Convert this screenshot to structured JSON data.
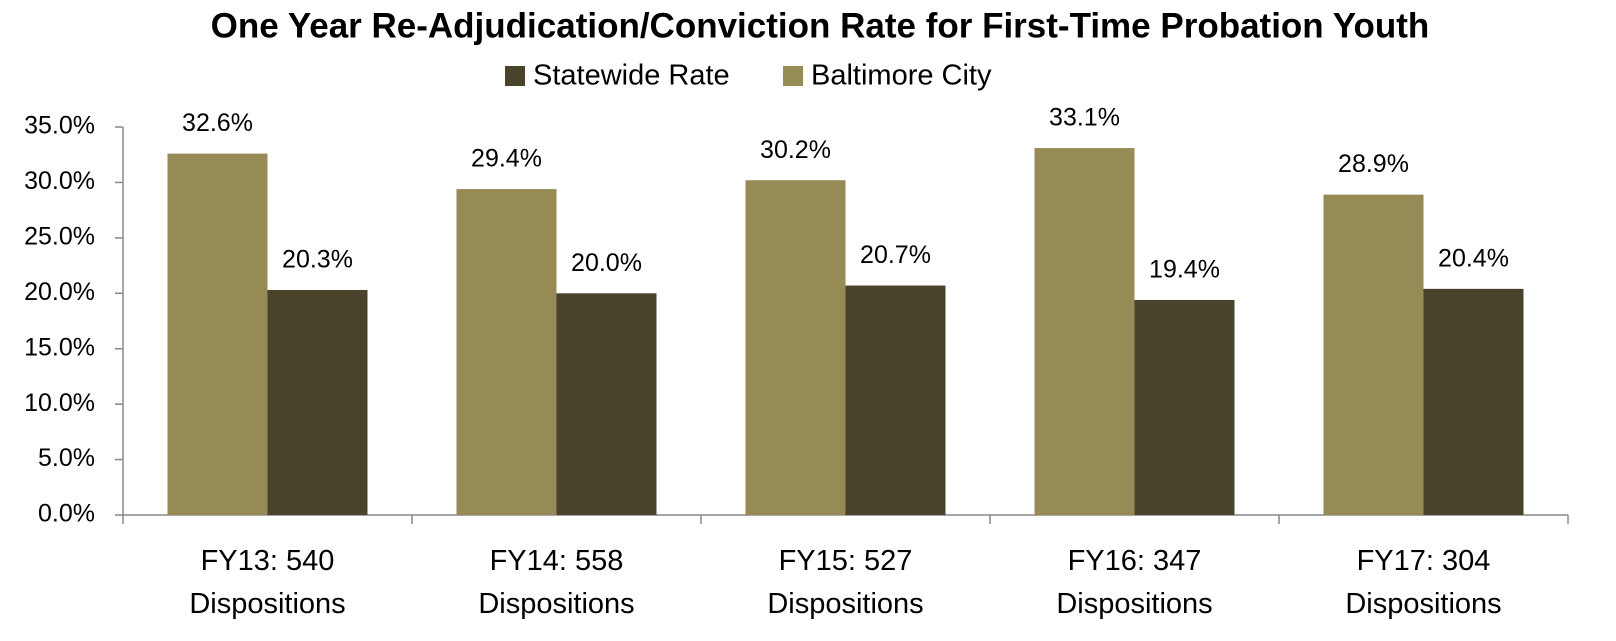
{
  "chart_data": {
    "type": "bar",
    "title": "One Year Re-Adjudication/Conviction Rate for First-Time Probation Youth",
    "categories": [
      "FY13: 540 Dispositions",
      "FY14: 558 Dispositions",
      "FY15: 527 Dispositions",
      "FY16: 347 Dispositions",
      "FY17: 304 Dispositions"
    ],
    "series": [
      {
        "name": "Statewide Rate",
        "color": "#4a432c",
        "values": [
          20.3,
          20.0,
          20.7,
          19.4,
          20.4
        ],
        "value_labels": [
          "20.3%",
          "20.0%",
          "20.7%",
          "19.4%",
          "20.4%"
        ]
      },
      {
        "name": "Baltimore City",
        "color": "#968b55",
        "values": [
          32.6,
          29.4,
          30.2,
          33.1,
          28.9
        ],
        "value_labels": [
          "32.6%",
          "29.4%",
          "30.2%",
          "33.1%",
          "28.9%"
        ]
      }
    ],
    "ylim": [
      0,
      35
    ],
    "yticks": [
      {
        "value": 0,
        "label": "0.0%"
      },
      {
        "value": 5,
        "label": "5.0%"
      },
      {
        "value": 10,
        "label": "10.0%"
      },
      {
        "value": 15,
        "label": "15.0%"
      },
      {
        "value": 20,
        "label": "20.0%"
      },
      {
        "value": 25,
        "label": "25.0%"
      },
      {
        "value": 30,
        "label": "30.0%"
      },
      {
        "value": 35,
        "label": "35.0%"
      }
    ],
    "legend": "top",
    "grid": false
  }
}
